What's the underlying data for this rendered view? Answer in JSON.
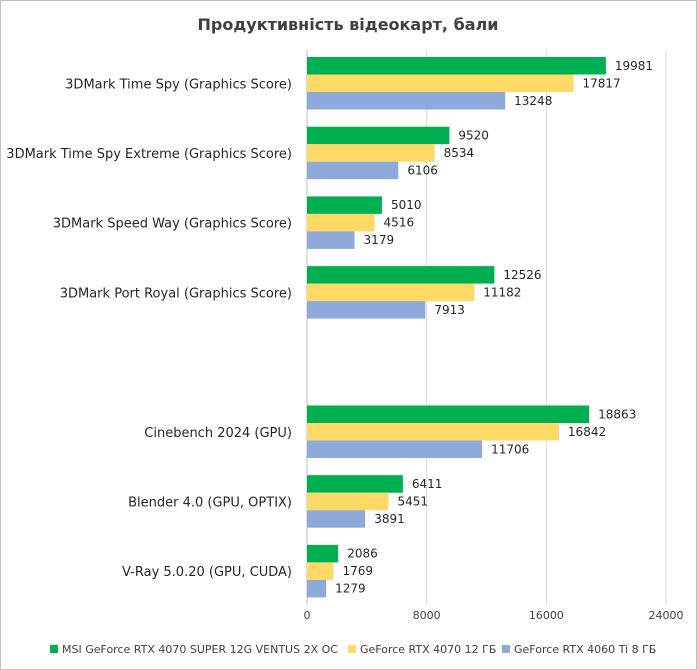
{
  "chart_data": {
    "type": "bar",
    "orientation": "horizontal",
    "title": "Продуктивність відеокарт, бали",
    "categories": [
      "3DMark Time Spy (Graphics Score)",
      "3DMark Time Spy Extreme (Graphics Score)",
      "3DMark Speed Way (Graphics Score)",
      "3DMark Port Royal (Graphics Score)",
      "",
      "Cinebench 2024 (GPU)",
      "Blender 4.0 (GPU, OPTIX)",
      "V-Ray 5.0.20 (GPU, CUDA)"
    ],
    "series": [
      {
        "name": "MSI GeForce RTX 4070 SUPER 12G VENTUS 2X OC",
        "color": "#00b050",
        "values": [
          19981,
          9520,
          5010,
          12526,
          null,
          18863,
          6411,
          2086
        ]
      },
      {
        "name": "GeForce RTX 4070 12 ГБ",
        "color": "#ffd966",
        "values": [
          17817,
          8534,
          4516,
          11182,
          null,
          16842,
          5451,
          1769
        ]
      },
      {
        "name": "GeForce RTX 4060 Ti 8 ГБ",
        "color": "#8eaadb",
        "values": [
          13248,
          6106,
          3179,
          7913,
          null,
          11706,
          3891,
          1279
        ]
      }
    ],
    "xlim": [
      0,
      24000
    ],
    "xticks": [
      "0",
      "8000",
      "16000",
      "24000"
    ],
    "grid": true,
    "legend_position": "bottom"
  }
}
